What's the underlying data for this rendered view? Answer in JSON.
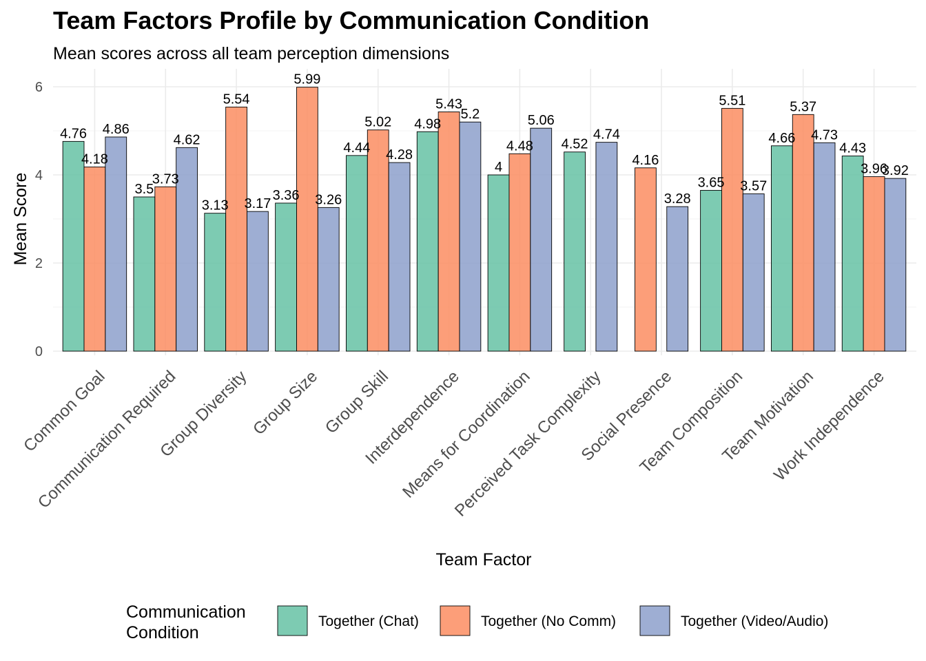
{
  "chart_data": {
    "type": "bar",
    "title": "Team Factors Profile by Communication Condition",
    "subtitle": "Mean scores across all team perception dimensions",
    "xlabel": "Team Factor",
    "ylabel": "Mean Score",
    "ylim": [
      0,
      6
    ],
    "yticks": [
      0,
      2,
      4,
      6
    ],
    "grid": true,
    "legend": {
      "title_lines": [
        "Communication",
        "Condition"
      ],
      "position": "bottom"
    },
    "categories": [
      "Common Goal",
      "Communication Required",
      "Group Diversity",
      "Group Size",
      "Group Skill",
      "Interdependence",
      "Means for Coordination",
      "Perceived Task Complexity",
      "Social Presence",
      "Team Composition",
      "Team Motivation",
      "Work Independence"
    ],
    "series": [
      {
        "name": "Together (Chat)",
        "color": "#66c2a5",
        "values": [
          4.76,
          3.5,
          3.13,
          3.36,
          4.44,
          4.98,
          4,
          4.52,
          null,
          3.65,
          4.66,
          4.43
        ],
        "labels": [
          "4.76",
          "3.5",
          "3.13",
          "3.36",
          "4.44",
          "4.98",
          "4",
          "4.52",
          null,
          "3.65",
          "4.66",
          "4.43"
        ]
      },
      {
        "name": "Together (No Comm)",
        "color": "#fc8d62",
        "values": [
          4.18,
          3.73,
          5.54,
          5.99,
          5.02,
          5.43,
          4.48,
          null,
          4.16,
          5.51,
          5.37,
          3.96
        ],
        "labels": [
          "4.18",
          "3.73",
          "5.54",
          "5.99",
          "5.02",
          "5.43",
          "4.48",
          null,
          "4.16",
          "5.51",
          "5.37",
          "3.96"
        ]
      },
      {
        "name": "Together (Video/Audio)",
        "color": "#8da0cb",
        "values": [
          4.86,
          4.62,
          3.17,
          3.26,
          4.28,
          5.2,
          5.06,
          4.74,
          3.28,
          3.57,
          4.73,
          3.92
        ],
        "labels": [
          "4.86",
          "4.62",
          "3.17",
          "3.26",
          "4.28",
          "5.2",
          "5.06",
          "4.74",
          "3.28",
          "3.57",
          "4.73",
          "3.92"
        ]
      }
    ]
  }
}
